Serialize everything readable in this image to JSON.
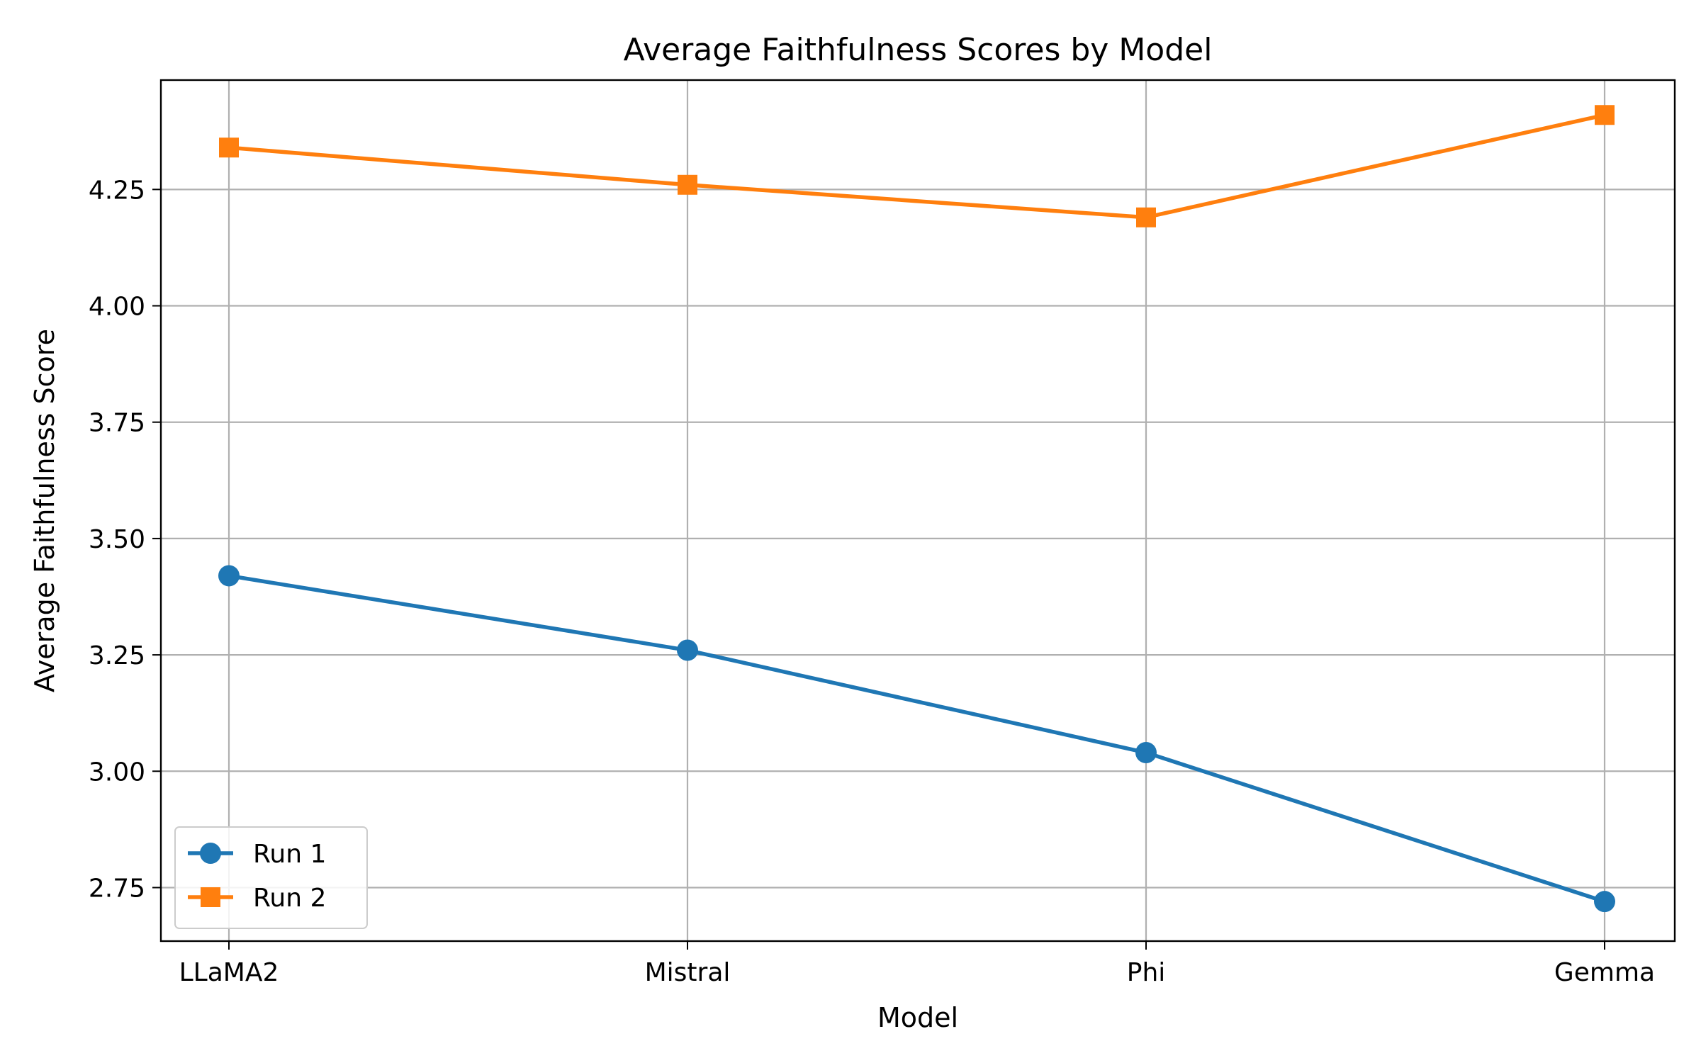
{
  "chart_data": {
    "type": "line",
    "title": "Average Faithfulness Scores by Model",
    "xlabel": "Model",
    "ylabel": "Average Faithfulness Score",
    "categories": [
      "LLaMA2",
      "Mistral",
      "Phi",
      "Gemma"
    ],
    "ylim": [
      2.635,
      4.485
    ],
    "yticks": [
      2.75,
      3.0,
      3.25,
      3.5,
      3.75,
      4.0,
      4.25
    ],
    "ytick_labels": [
      "2.75",
      "3.00",
      "3.25",
      "3.50",
      "3.75",
      "4.00",
      "4.25"
    ],
    "grid": true,
    "legend_position": "lower-left",
    "series": [
      {
        "name": "Run 1",
        "values": [
          3.42,
          3.26,
          3.04,
          2.72
        ],
        "color": "#1f77b4",
        "marker": "circle"
      },
      {
        "name": "Run 2",
        "values": [
          4.34,
          4.26,
          4.19,
          4.41
        ],
        "color": "#ff7f0e",
        "marker": "square"
      }
    ]
  }
}
